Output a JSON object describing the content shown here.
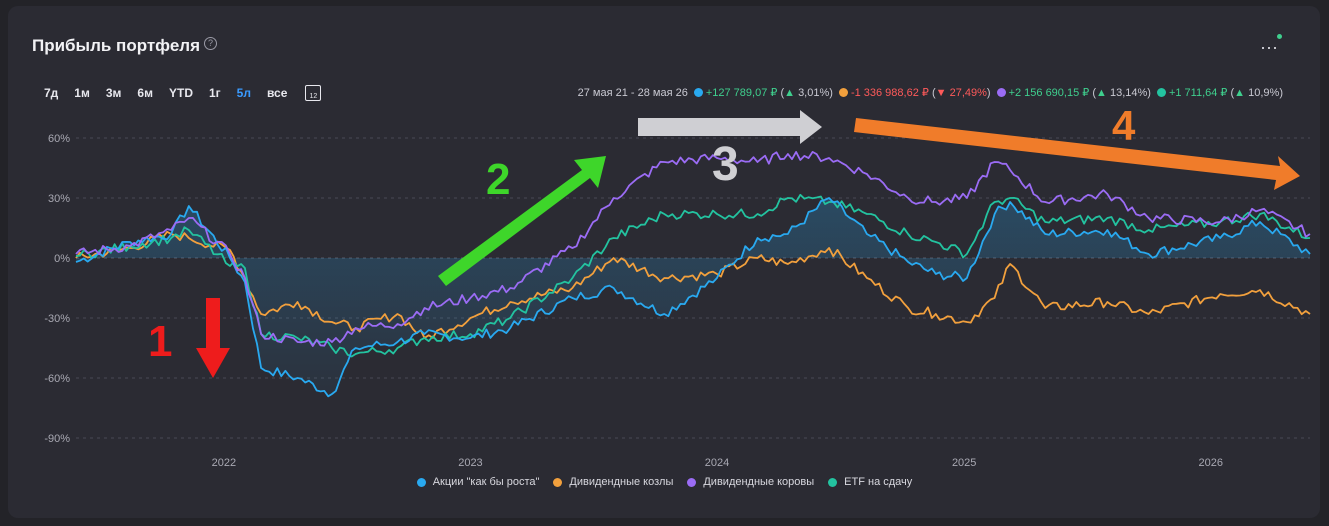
{
  "title": "Прибыль портфеля",
  "help_icon": "?",
  "menu_icon": "⋯",
  "ranges": [
    {
      "label": "7д",
      "active": false
    },
    {
      "label": "1м",
      "active": false
    },
    {
      "label": "3м",
      "active": false
    },
    {
      "label": "6м",
      "active": false
    },
    {
      "label": "YTD",
      "active": false
    },
    {
      "label": "1г",
      "active": false
    },
    {
      "label": "5л",
      "active": true
    },
    {
      "label": "все",
      "active": false
    }
  ],
  "calendar_icon_text": "12",
  "date_range": "27 мая 21 - 28 мая 26",
  "summary": [
    {
      "color": "#29a9f0",
      "value": "+127 789,07 ₽",
      "sign": "up",
      "change": "3,01%"
    },
    {
      "color": "#f2a03d",
      "value": "-1 336 988,62 ₽",
      "sign": "down",
      "change": "27,49%"
    },
    {
      "color": "#9b6cf5",
      "value": "+2 156 690,15 ₽",
      "sign": "up",
      "change": "13,14%"
    },
    {
      "color": "#23c3a0",
      "value": "+1 711,64 ₽",
      "sign": "up",
      "change": "10,9%"
    }
  ],
  "annotations": [
    "1",
    "2",
    "3",
    "4"
  ],
  "chart_data": {
    "type": "line",
    "x_start": "2021-05-27",
    "x_end": "2026-05-28",
    "xticks": [
      "2022",
      "2023",
      "2024",
      "2025",
      "2026"
    ],
    "yticks": [
      "60%",
      "30%",
      "0%",
      "-30%",
      "-60%",
      "-90%"
    ],
    "ylim": [
      -90,
      60
    ],
    "grid": true,
    "legend_position": "bottom",
    "series": [
      {
        "name": "Акции \"как бы роста\"",
        "color": "#29a9f0",
        "x": [
          "2021-05-27",
          "2021-08-15",
          "2021-10-15",
          "2021-11-10",
          "2022-01-10",
          "2022-02-01",
          "2022-02-25",
          "2022-04-20",
          "2022-06-10",
          "2022-07-15",
          "2022-09-15",
          "2022-10-25",
          "2023-01-01",
          "2023-03-01",
          "2023-06-01",
          "2023-08-01",
          "2023-10-15",
          "2024-01-01",
          "2024-03-01",
          "2024-04-15",
          "2024-06-15",
          "2024-08-10",
          "2024-10-10",
          "2024-11-20",
          "2025-01-05",
          "2025-02-15",
          "2025-03-10",
          "2025-05-01",
          "2025-08-01",
          "2025-10-01",
          "2026-01-15",
          "2026-03-15",
          "2026-05-28"
        ],
        "y": [
          -2,
          8,
          12,
          26,
          0,
          -12,
          -55,
          -60,
          -68,
          -45,
          -42,
          -38,
          -40,
          -35,
          -20,
          -15,
          -28,
          -10,
          10,
          12,
          30,
          12,
          -2,
          -8,
          -10,
          22,
          28,
          12,
          14,
          2,
          10,
          18,
          2
        ]
      },
      {
        "name": "Дивидендные козлы",
        "color": "#f2a03d",
        "x": [
          "2021-05-27",
          "2021-08-15",
          "2021-10-15",
          "2021-11-10",
          "2022-01-10",
          "2022-02-01",
          "2022-02-25",
          "2022-04-20",
          "2022-06-10",
          "2022-07-15",
          "2022-09-15",
          "2022-10-25",
          "2023-01-01",
          "2023-03-01",
          "2023-06-01",
          "2023-08-01",
          "2023-10-15",
          "2024-01-01",
          "2024-03-01",
          "2024-04-15",
          "2024-06-15",
          "2024-08-10",
          "2024-10-10",
          "2024-11-20",
          "2025-01-05",
          "2025-02-15",
          "2025-03-10",
          "2025-05-01",
          "2025-08-01",
          "2025-10-01",
          "2026-01-15",
          "2026-03-15",
          "2026-05-28"
        ],
        "y": [
          0,
          5,
          12,
          10,
          4,
          -10,
          -28,
          -22,
          -32,
          -35,
          -28,
          -40,
          -30,
          -22,
          -15,
          0,
          -10,
          -8,
          0,
          -3,
          5,
          -10,
          -25,
          -28,
          -32,
          -20,
          -3,
          -25,
          -22,
          -28,
          -18,
          -16,
          -28
        ]
      },
      {
        "name": "Дивидендные коровы",
        "color": "#9b6cf5",
        "x": [
          "2021-05-27",
          "2021-08-15",
          "2021-10-15",
          "2021-11-10",
          "2022-01-10",
          "2022-02-01",
          "2022-02-25",
          "2022-04-20",
          "2022-06-10",
          "2022-07-15",
          "2022-09-15",
          "2022-10-25",
          "2023-01-01",
          "2023-03-01",
          "2023-06-01",
          "2023-08-01",
          "2023-10-15",
          "2024-01-01",
          "2024-03-01",
          "2024-04-15",
          "2024-06-15",
          "2024-08-10",
          "2024-10-10",
          "2024-11-20",
          "2025-01-05",
          "2025-02-15",
          "2025-03-10",
          "2025-05-01",
          "2025-08-01",
          "2025-10-01",
          "2026-01-15",
          "2026-03-15",
          "2026-05-28"
        ],
        "y": [
          2,
          6,
          14,
          20,
          2,
          -10,
          -38,
          -42,
          -42,
          -35,
          -33,
          -25,
          -20,
          -15,
          5,
          30,
          48,
          50,
          48,
          52,
          50,
          42,
          30,
          28,
          30,
          48,
          44,
          28,
          32,
          20,
          18,
          24,
          12
        ]
      },
      {
        "name": "ETF на сдачу",
        "color": "#23c3a0",
        "x": [
          "2021-05-27",
          "2021-08-15",
          "2021-10-15",
          "2021-11-10",
          "2022-01-10",
          "2022-02-01",
          "2022-02-25",
          "2022-04-20",
          "2022-06-10",
          "2022-07-15",
          "2022-09-15",
          "2022-10-25",
          "2023-01-01",
          "2023-03-01",
          "2023-06-01",
          "2023-08-01",
          "2023-10-15",
          "2024-01-01",
          "2024-03-01",
          "2024-04-15",
          "2024-06-15",
          "2024-08-10",
          "2024-10-10",
          "2024-11-20",
          "2025-01-05",
          "2025-02-15",
          "2025-03-10",
          "2025-05-01",
          "2025-08-01",
          "2025-10-01",
          "2026-01-15",
          "2026-03-15",
          "2026-05-28"
        ],
        "y": [
          1,
          6,
          10,
          14,
          -4,
          -5,
          -38,
          -40,
          -45,
          -48,
          -45,
          -40,
          -38,
          -30,
          -10,
          10,
          22,
          22,
          22,
          30,
          28,
          22,
          12,
          8,
          2,
          28,
          30,
          18,
          20,
          14,
          18,
          22,
          10
        ]
      }
    ]
  }
}
